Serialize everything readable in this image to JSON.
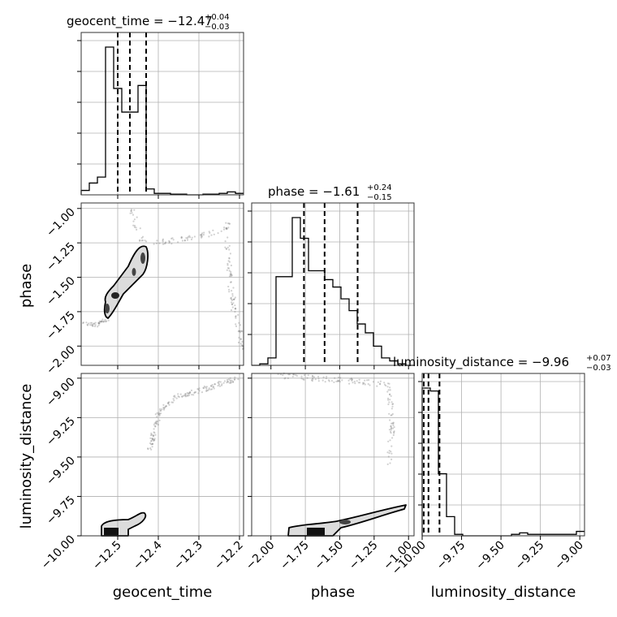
{
  "chart_data": {
    "type": "corner",
    "parameters": [
      "geocent_time",
      "phase",
      "luminosity_distance"
    ],
    "titles": [
      {
        "param": "geocent_time",
        "text": "geocent_time = −12.47",
        "plus": "+0.04",
        "minus": "−0.03"
      },
      {
        "param": "phase",
        "text": "phase = −1.61",
        "plus": "+0.24",
        "minus": "−0.15"
      },
      {
        "param": "luminosity_distance",
        "text": "luminosity_distance = −9.96",
        "plus": "+0.07",
        "minus": "−0.03"
      }
    ],
    "ranges": {
      "geocent_time": [
        -12.59,
        -12.19
      ],
      "phase": [
        -2.14,
        -0.96
      ],
      "luminosity_distance": [
        -10.0,
        -8.97
      ]
    },
    "ticks": {
      "geocent_time": {
        "values": [
          -12.5,
          -12.4,
          -12.3,
          -12.2
        ],
        "labels": [
          "−12.5",
          "−12.4",
          "−12.3",
          "−12.2"
        ]
      },
      "phase": {
        "values": [
          -2.0,
          -1.75,
          -1.5,
          -1.25,
          -1.0
        ],
        "labels": [
          "−2.00",
          "−1.75",
          "−1.50",
          "−1.25",
          "−1.00"
        ]
      },
      "luminosity_distance": {
        "values": [
          -10.0,
          -9.75,
          -9.5,
          -9.25,
          -9.0
        ],
        "labels": [
          "−10.00",
          "−9.75",
          "−9.50",
          "−9.25",
          "−9.00"
        ]
      }
    },
    "quantiles": {
      "geocent_time": [
        -12.5,
        -12.47,
        -12.43
      ],
      "phase": [
        -1.76,
        -1.61,
        -1.37
      ],
      "luminosity_distance": [
        -9.99,
        -9.96,
        -9.89
      ]
    },
    "histograms": {
      "geocent_time": {
        "edges_start": -12.59,
        "bin_width": 0.02,
        "counts": [
          3,
          8,
          12,
          100,
          72,
          56,
          56,
          74,
          4,
          1,
          1,
          0.5,
          0.5,
          0,
          0,
          0.5,
          0.5,
          1,
          2,
          1
        ]
      },
      "phase": {
        "edges_start": -2.14,
        "bin_width": 0.059,
        "counts": [
          0,
          1,
          5,
          60,
          60,
          100,
          86,
          64,
          64,
          58,
          53,
          45,
          37,
          28,
          22,
          13,
          5,
          3,
          1,
          0
        ]
      },
      "luminosity_distance": {
        "edges_start": -10.0,
        "bin_width": 0.0515,
        "counts": [
          100,
          98,
          42,
          13,
          1,
          0,
          0,
          0,
          0,
          0,
          0,
          1,
          2,
          1,
          1,
          1,
          1,
          1,
          1,
          3
        ]
      }
    },
    "grid": true,
    "grid_color": "#b0b0b0",
    "line_color": "#000000",
    "scatter_color": "#7a7a7a"
  }
}
